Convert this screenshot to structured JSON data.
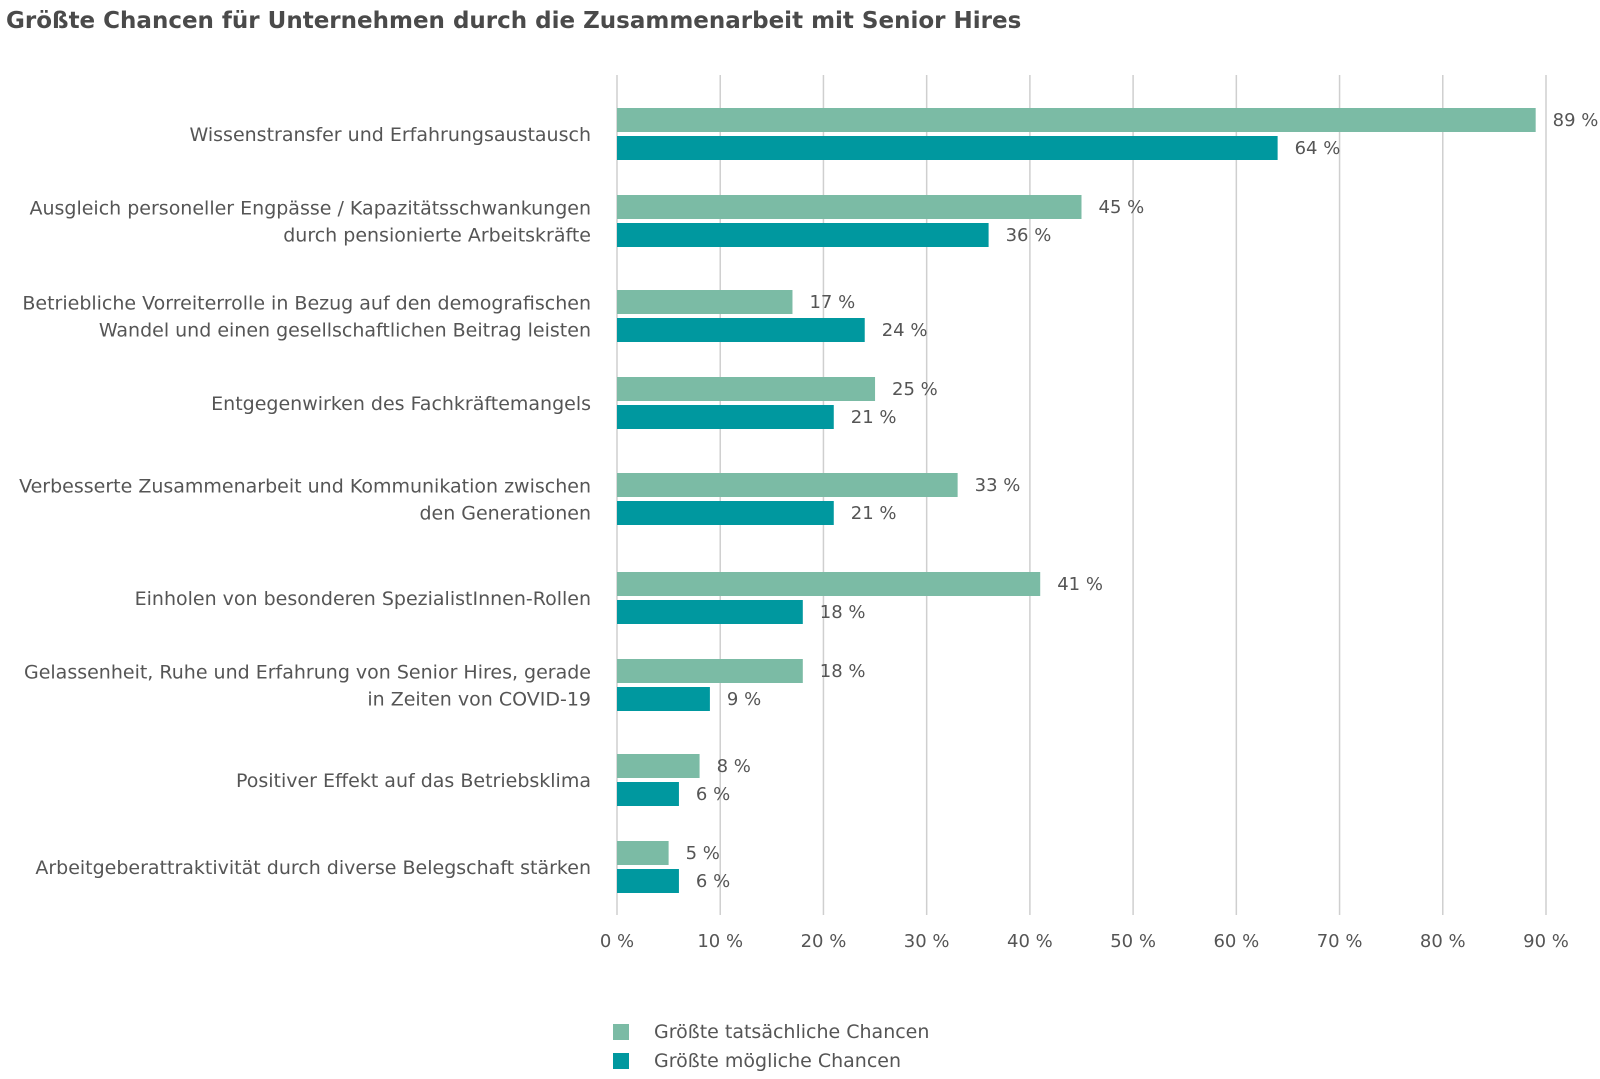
{
  "chart_data": {
    "type": "bar",
    "orientation": "horizontal",
    "title": "Größte Chancen für Unternehmen durch die Zusammenarbeit mit Senior Hires",
    "categories": [
      [
        "Wissenstransfer und Erfahrungsaustausch"
      ],
      [
        "Ausgleich personeller Engpässe / Kapazitätsschwankungen",
        "durch pensionierte Arbeitskräfte"
      ],
      [
        "Betriebliche Vorreiterrolle in Bezug auf den demografischen",
        "Wandel und einen gesellschaftlichen Beitrag leisten"
      ],
      [
        "Entgegenwirken des Fachkräftemangels"
      ],
      [
        "Verbesserte Zusammenarbeit und Kommunikation zwischen",
        "den Generationen"
      ],
      [
        "Einholen von besonderen SpezialistInnen-Rollen"
      ],
      [
        "Gelassenheit, Ruhe und Erfahrung von Senior Hires, gerade",
        "in Zeiten von COVID-19"
      ],
      [
        "Positiver Effekt auf das Betriebsklima"
      ],
      [
        "Arbeitgeberattraktivität durch diverse Belegschaft stärken"
      ]
    ],
    "series": [
      {
        "name": "Größte tatsächliche Chancen",
        "color": "#7bbba5",
        "values": [
          89,
          45,
          17,
          25,
          33,
          41,
          18,
          8,
          5
        ],
        "labels": [
          "89 %",
          "45 %",
          "17 %",
          "25 %",
          "33 %",
          "41 %",
          "18 %",
          "8 %",
          "5 %"
        ]
      },
      {
        "name": "Größte mögliche Chancen",
        "color": "#00989f",
        "values": [
          64,
          36,
          24,
          21,
          21,
          18,
          9,
          6,
          6
        ],
        "labels": [
          "64 %",
          "36 %",
          "24 %",
          "21 %",
          "21 %",
          "18 %",
          "9 %",
          "6 %",
          "6 %"
        ]
      }
    ],
    "xlim": [
      0,
      90
    ],
    "ticks": [
      0,
      10,
      20,
      30,
      40,
      50,
      60,
      70,
      80,
      90
    ],
    "tick_labels": [
      "0 %",
      "10 %",
      "20 %",
      "30 %",
      "40 %",
      "50 %",
      "60 %",
      "70 %",
      "80 %",
      "90 %"
    ],
    "grid": true,
    "legend_position": "bottom"
  }
}
